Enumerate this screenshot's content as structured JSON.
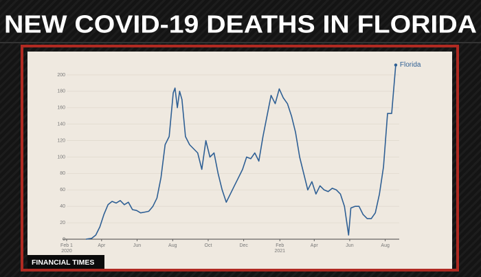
{
  "chart_data": {
    "type": "line",
    "title": "NEW COVID-19 DEATHS IN FLORIDA",
    "source": "FINANCIAL TIMES",
    "x": [
      "2020-03-05",
      "2020-03-15",
      "2020-03-22",
      "2020-03-29",
      "2020-04-05",
      "2020-04-12",
      "2020-04-19",
      "2020-04-26",
      "2020-05-03",
      "2020-05-10",
      "2020-05-17",
      "2020-05-24",
      "2020-05-31",
      "2020-06-07",
      "2020-06-14",
      "2020-06-21",
      "2020-06-28",
      "2020-07-05",
      "2020-07-12",
      "2020-07-19",
      "2020-07-26",
      "2020-08-02",
      "2020-08-05",
      "2020-08-09",
      "2020-08-13",
      "2020-08-17",
      "2020-08-23",
      "2020-08-30",
      "2020-09-06",
      "2020-09-13",
      "2020-09-20",
      "2020-09-27",
      "2020-10-04",
      "2020-10-11",
      "2020-10-18",
      "2020-10-25",
      "2020-11-01",
      "2020-11-08",
      "2020-11-15",
      "2020-11-22",
      "2020-11-29",
      "2020-12-06",
      "2020-12-13",
      "2020-12-20",
      "2020-12-27",
      "2021-01-03",
      "2021-01-10",
      "2021-01-17",
      "2021-01-24",
      "2021-01-31",
      "2021-02-07",
      "2021-02-14",
      "2021-02-21",
      "2021-02-28",
      "2021-03-07",
      "2021-03-14",
      "2021-03-21",
      "2021-03-28",
      "2021-04-04",
      "2021-04-11",
      "2021-04-18",
      "2021-04-25",
      "2021-05-02",
      "2021-05-09",
      "2021-05-16",
      "2021-05-23",
      "2021-05-30",
      "2021-06-03",
      "2021-06-10",
      "2021-06-17",
      "2021-06-24",
      "2021-07-01",
      "2021-07-08",
      "2021-07-15",
      "2021-07-22",
      "2021-07-29",
      "2021-08-05",
      "2021-08-12",
      "2021-08-19"
    ],
    "series": [
      {
        "name": "Florida",
        "color": "#2e5f94",
        "values": [
          0,
          1,
          5,
          15,
          30,
          42,
          46,
          44,
          47,
          42,
          45,
          36,
          35,
          32,
          33,
          34,
          40,
          50,
          75,
          115,
          125,
          178,
          184,
          160,
          180,
          170,
          125,
          115,
          110,
          105,
          85,
          120,
          100,
          105,
          80,
          60,
          45,
          55,
          65,
          75,
          85,
          100,
          98,
          105,
          95,
          125,
          150,
          175,
          165,
          183,
          172,
          165,
          150,
          130,
          100,
          80,
          60,
          70,
          55,
          65,
          60,
          58,
          62,
          60,
          55,
          40,
          5,
          38,
          40,
          40,
          30,
          25,
          25,
          32,
          55,
          88,
          153,
          153,
          212
        ]
      }
    ],
    "xlim": [
      "2020-02-01",
      "2021-08-25"
    ],
    "xticks": [
      {
        "value": "2020-02-01",
        "label": "Feb 1"
      },
      {
        "value": "2020-04-01",
        "label": "Apr"
      },
      {
        "value": "2020-06-01",
        "label": "Jun"
      },
      {
        "value": "2020-08-01",
        "label": "Aug"
      },
      {
        "value": "2020-10-01",
        "label": "Oct"
      },
      {
        "value": "2020-12-01",
        "label": "Dec"
      },
      {
        "value": "2021-02-01",
        "label": "Feb"
      },
      {
        "value": "2021-04-01",
        "label": "Apr"
      },
      {
        "value": "2021-06-01",
        "label": "Jun"
      },
      {
        "value": "2021-08-01",
        "label": "Aug"
      }
    ],
    "year_labels": [
      {
        "value": "2020-02-01",
        "label": "2020"
      },
      {
        "value": "2021-02-01",
        "label": "2021"
      }
    ],
    "ylim": [
      0,
      215
    ],
    "yticks": [
      0,
      20,
      40,
      60,
      80,
      100,
      120,
      140,
      160,
      180,
      200
    ],
    "grid": true
  }
}
